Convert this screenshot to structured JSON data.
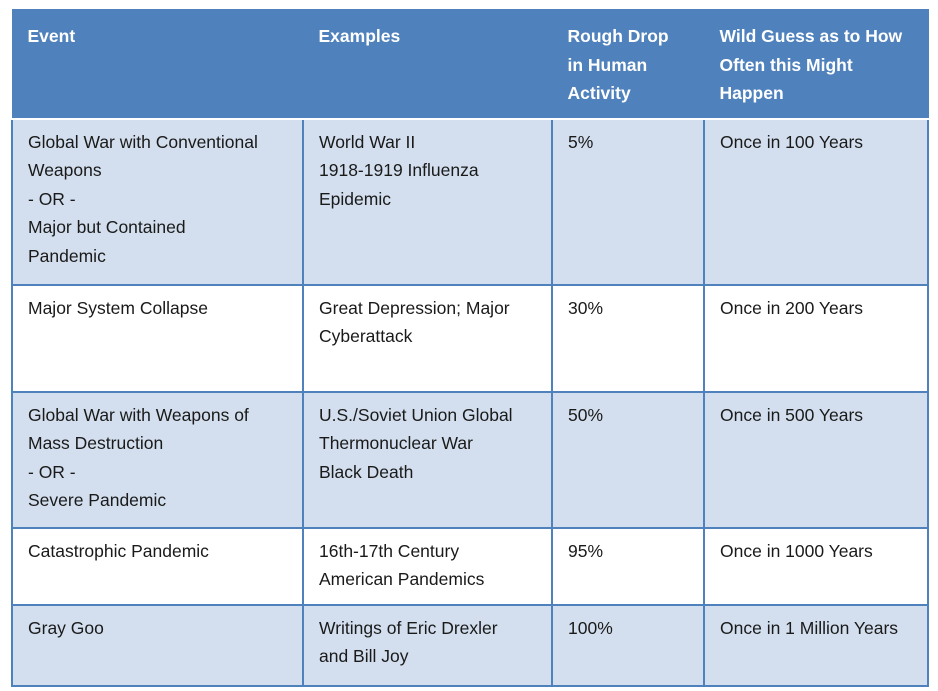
{
  "table": {
    "headers": [
      [
        "Event"
      ],
      [
        "Examples"
      ],
      [
        "Rough Drop",
        "in Human",
        "Activity"
      ],
      [
        "Wild Guess as to How",
        "Often this Might",
        "Happen"
      ]
    ],
    "rows": [
      {
        "event": [
          "Global War with Conventional",
          "Weapons",
          "- OR -",
          "Major but Contained",
          "Pandemic"
        ],
        "examples": [
          "World War II",
          "1918-1919 Influenza",
          "Epidemic"
        ],
        "drop": "5%",
        "frequency": "Once in 100 Years"
      },
      {
        "event": [
          "Major System Collapse"
        ],
        "examples": [
          "Great Depression; Major",
          "Cyberattack"
        ],
        "drop": "30%",
        "frequency": "Once in 200 Years"
      },
      {
        "event": [
          "Global War with Weapons of",
          "Mass Destruction",
          "- OR -",
          "Severe Pandemic"
        ],
        "examples": [
          "U.S./Soviet Union Global",
          "Thermonuclear War",
          "Black Death"
        ],
        "drop": "50%",
        "frequency": "Once in 500 Years"
      },
      {
        "event": [
          "Catastrophic Pandemic"
        ],
        "examples": [
          "16th-17th Century",
          "American Pandemics"
        ],
        "drop": "95%",
        "frequency": "Once in 1000 Years"
      },
      {
        "event": [
          "Gray Goo"
        ],
        "examples": [
          "Writings of Eric Drexler",
          "and Bill Joy"
        ],
        "drop": "100%",
        "frequency": "Once in 1 Million Years"
      }
    ]
  },
  "colors": {
    "header_bg": "#4f81bd",
    "header_text": "#ffffff",
    "row_shade": "#d3dfee",
    "row_plain": "#ffffff",
    "border": "#4f81bd"
  }
}
